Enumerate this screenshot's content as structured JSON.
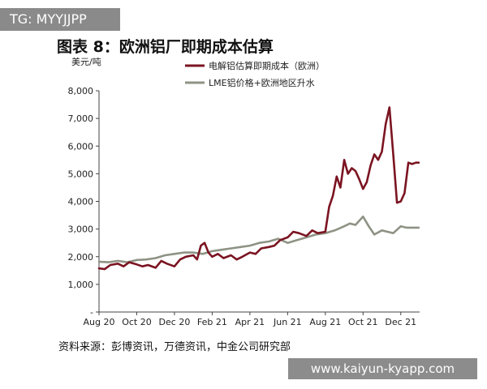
{
  "watermark_top": "TG: MYYJJPP",
  "watermark_bottom": "www.kaiyun-kyapp.com",
  "source": "资料来源：彭博资讯，万德资讯，中金公司研究部",
  "colors": {
    "series1": "#7b1421",
    "series2": "#8e9385",
    "axis": "#444444"
  },
  "chart_data": {
    "type": "line",
    "title": "图表 8：欧洲铝厂即期成本估算",
    "ylabel": "美元/吨",
    "xlabel": "",
    "ylim": [
      0,
      8000
    ],
    "yticks": [
      0,
      1000,
      2000,
      3000,
      4000,
      5000,
      6000,
      7000,
      8000
    ],
    "ytick_labels": [
      "-",
      "1,000",
      "2,000",
      "3,000",
      "4,000",
      "5,000",
      "6,000",
      "7,000",
      "8,000"
    ],
    "xlim": [
      0,
      17
    ],
    "xticks": [
      0,
      2,
      4,
      6,
      8,
      10,
      12,
      14,
      16
    ],
    "xtick_labels": [
      "Aug 20",
      "Oct 20",
      "Dec 20",
      "Feb 21",
      "Apr 21",
      "Jun 21",
      "Aug 21",
      "Oct 21",
      "Dec 21"
    ],
    "legend_position": "top",
    "grid": false,
    "series": [
      {
        "name": "电解铝估算即期成本（欧洲）",
        "color": "#7b1421",
        "x": [
          0,
          0.3,
          0.6,
          1.0,
          1.3,
          1.6,
          2.0,
          2.3,
          2.6,
          3.0,
          3.3,
          3.6,
          4.0,
          4.3,
          4.6,
          5.0,
          5.2,
          5.4,
          5.6,
          5.8,
          6.0,
          6.3,
          6.6,
          7.0,
          7.3,
          7.6,
          8.0,
          8.3,
          8.6,
          9.0,
          9.3,
          9.6,
          10.0,
          10.3,
          10.6,
          11.0,
          11.3,
          11.6,
          12.0,
          12.2,
          12.4,
          12.6,
          12.8,
          13.0,
          13.2,
          13.4,
          13.6,
          13.8,
          14.0,
          14.2,
          14.4,
          14.6,
          14.8,
          15.0,
          15.2,
          15.4,
          15.6,
          15.8,
          16.0,
          16.2,
          16.4,
          16.6,
          16.8,
          16.95
        ],
        "values": [
          1580,
          1550,
          1700,
          1750,
          1650,
          1800,
          1720,
          1650,
          1700,
          1600,
          1850,
          1750,
          1650,
          1900,
          2000,
          2050,
          1900,
          2400,
          2500,
          2150,
          2000,
          2100,
          1950,
          2050,
          1900,
          2000,
          2150,
          2100,
          2300,
          2350,
          2400,
          2600,
          2700,
          2900,
          2850,
          2750,
          2950,
          2850,
          2900,
          3800,
          4200,
          4900,
          4500,
          5500,
          5000,
          5200,
          5100,
          4800,
          4450,
          4700,
          5300,
          5700,
          5500,
          5800,
          6800,
          7400,
          5700,
          3950,
          4000,
          4300,
          5400,
          5350,
          5400,
          5400
        ]
      },
      {
        "name": "LME铝价格+欧洲地区升水",
        "color": "#8e9385",
        "x": [
          0,
          0.5,
          1.0,
          1.5,
          2.0,
          2.5,
          3.0,
          3.5,
          4.0,
          4.5,
          5.0,
          5.5,
          6.0,
          6.5,
          7.0,
          7.5,
          8.0,
          8.5,
          9.0,
          9.5,
          10.0,
          10.5,
          11.0,
          11.5,
          12.0,
          12.5,
          13.0,
          13.3,
          13.6,
          14.0,
          14.3,
          14.6,
          15.0,
          15.3,
          15.6,
          16.0,
          16.3,
          16.6,
          16.95
        ],
        "values": [
          1820,
          1800,
          1850,
          1800,
          1880,
          1900,
          1950,
          2050,
          2100,
          2150,
          2150,
          2100,
          2200,
          2250,
          2300,
          2350,
          2400,
          2500,
          2550,
          2650,
          2500,
          2600,
          2700,
          2800,
          2850,
          2950,
          3100,
          3200,
          3150,
          3450,
          3100,
          2800,
          2950,
          2900,
          2850,
          3100,
          3050,
          3050,
          3050
        ]
      }
    ]
  }
}
